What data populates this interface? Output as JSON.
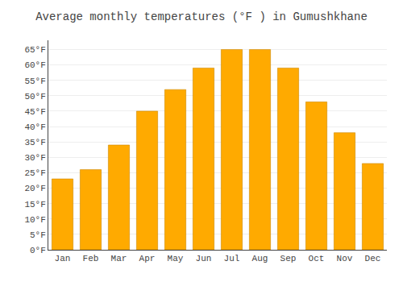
{
  "chart_data": {
    "type": "bar",
    "title": "Average monthly temperatures (°F ) in Gumushkhane",
    "categories": [
      "Jan",
      "Feb",
      "Mar",
      "Apr",
      "May",
      "Jun",
      "Jul",
      "Aug",
      "Sep",
      "Oct",
      "Nov",
      "Dec"
    ],
    "values": [
      23,
      26,
      34,
      45,
      52,
      59,
      65,
      65,
      59,
      48,
      38,
      28
    ],
    "color": "#FFAA00",
    "ylim": [
      0,
      68
    ],
    "yticks": [
      {
        "value": 0,
        "label": "0°F"
      },
      {
        "value": 5,
        "label": "5°F"
      },
      {
        "value": 10,
        "label": "10°F"
      },
      {
        "value": 15,
        "label": "15°F"
      },
      {
        "value": 20,
        "label": "20°F"
      },
      {
        "value": 25,
        "label": "25°F"
      },
      {
        "value": 30,
        "label": "30°F"
      },
      {
        "value": 35,
        "label": "35°F"
      },
      {
        "value": 40,
        "label": "40°F"
      },
      {
        "value": 45,
        "label": "45°F"
      },
      {
        "value": 50,
        "label": "50°F"
      },
      {
        "value": 55,
        "label": "55°F"
      },
      {
        "value": 60,
        "label": "60°F"
      },
      {
        "value": 65,
        "label": "65°F"
      }
    ],
    "grid": true
  }
}
